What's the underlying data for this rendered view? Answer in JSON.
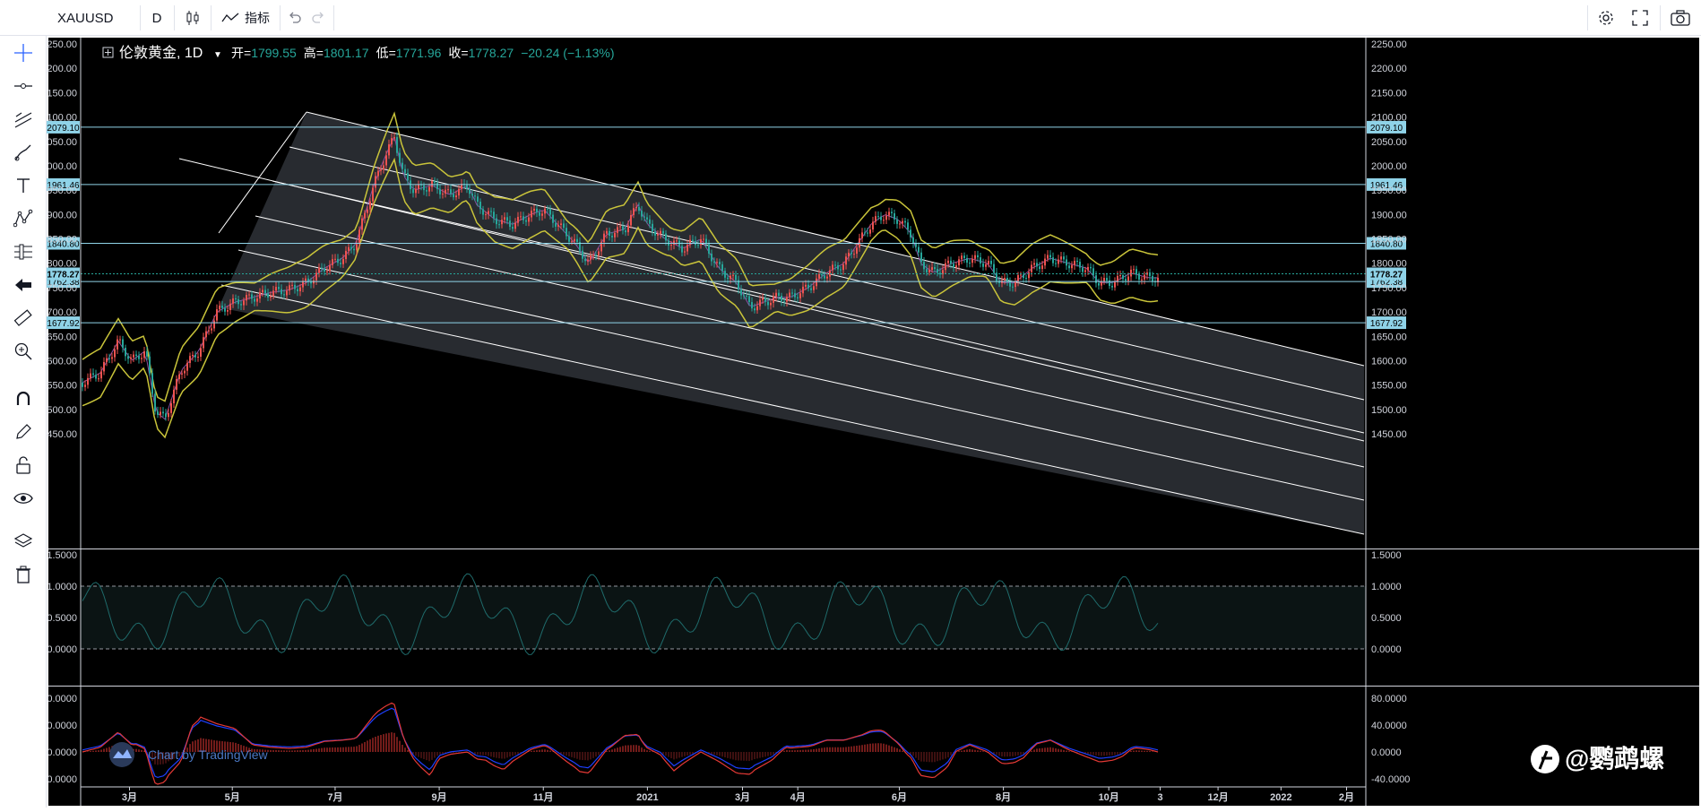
{
  "toolbar": {
    "symbol": "XAUUSD",
    "interval": "D",
    "indicators_label": "指标"
  },
  "legend": {
    "title": "伦敦黄金, 1D",
    "open_label": "开=",
    "open": "1799.55",
    "high_label": "高=",
    "high": "1801.17",
    "low_label": "低=",
    "low": "1771.96",
    "close_label": "收=",
    "close": "1778.27",
    "change": "−20.24 (−1.13%)"
  },
  "price_axis": [
    "2250.00",
    "2200.00",
    "2150.00",
    "2100.00",
    "2050.00",
    "2000.00",
    "1950.00",
    "1900.00",
    "1850.00",
    "1800.00",
    "1750.00",
    "1700.00",
    "1650.00",
    "1600.00",
    "1550.00",
    "1500.00",
    "1450.00"
  ],
  "price_values": [
    2250,
    2200,
    2150,
    2100,
    2050,
    2000,
    1950,
    1900,
    1850,
    1800,
    1750,
    1700,
    1650,
    1600,
    1550,
    1500,
    1450
  ],
  "hlines": [
    {
      "label": "2079.10",
      "value": 2079.1
    },
    {
      "label": "1961.46",
      "value": 1961.46
    },
    {
      "label": "1840.80",
      "value": 1840.8
    },
    {
      "label": "1762.38",
      "value": 1762.38
    },
    {
      "label": "1677.92",
      "value": 1677.92
    }
  ],
  "last_price": {
    "label": "1778.27",
    "value": 1778.27
  },
  "osc1_axis": [
    "1.5000",
    "1.0000",
    "0.5000",
    "0.0000"
  ],
  "osc1_values": [
    1.5,
    1.0,
    0.5,
    0.0
  ],
  "osc2_axis": [
    "80.0000",
    "40.0000",
    "0.0000",
    "-40.0000"
  ],
  "osc2_values": [
    80,
    40,
    0,
    -40
  ],
  "time_axis": [
    {
      "label": "3月",
      "pos": 0.038
    },
    {
      "label": "5月",
      "pos": 0.118
    },
    {
      "label": "7月",
      "pos": 0.198
    },
    {
      "label": "9月",
      "pos": 0.279
    },
    {
      "label": "11月",
      "pos": 0.36
    },
    {
      "label": "2021",
      "pos": 0.441
    },
    {
      "label": "3月",
      "pos": 0.515
    },
    {
      "label": "4月",
      "pos": 0.558
    },
    {
      "label": "6月",
      "pos": 0.637
    },
    {
      "label": "8月",
      "pos": 0.718
    },
    {
      "label": "10月",
      "pos": 0.8
    },
    {
      "label": "3",
      "pos": 0.84
    },
    {
      "label": "12月",
      "pos": 0.885
    },
    {
      "label": "2022",
      "pos": 0.934
    },
    {
      "label": "2月",
      "pos": 0.985
    }
  ],
  "branding": {
    "tradingview": "Chart by TradingView",
    "watermark": "@鹦鹉螺"
  },
  "colors": {
    "background": "#000000",
    "band": "#c9c43a",
    "up": "#ef5350",
    "down": "#26a69a",
    "label_bg": "#8fd3e8",
    "channel": "#ffffff",
    "osc_line": "#1f6b6b",
    "macd_red": "#e53935",
    "macd_blue": "#1e40ff"
  }
}
